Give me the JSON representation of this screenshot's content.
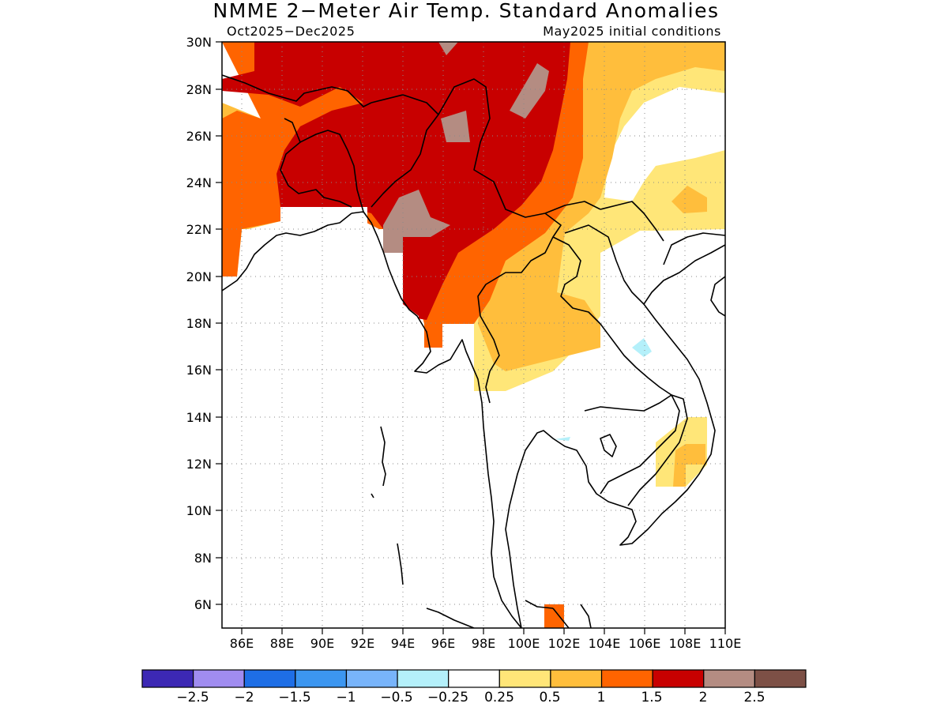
{
  "header": {
    "title": "NMME 2−Meter Air Temp. Standard Anomalies",
    "period": "Oct2025−Dec2025",
    "initial_conditions": "May2025 initial conditions"
  },
  "map": {
    "lon_range": [
      85,
      110
    ],
    "lat_range": [
      5,
      30
    ],
    "lat_ticks": [
      "30N",
      "28N",
      "26N",
      "24N",
      "22N",
      "20N",
      "18N",
      "16N",
      "14N",
      "12N",
      "10N",
      "8N",
      "6N"
    ],
    "lon_ticks": [
      "86E",
      "88E",
      "90E",
      "92E",
      "94E",
      "96E",
      "98E",
      "100E",
      "102E",
      "104E",
      "106E",
      "108E",
      "110E"
    ],
    "coastline_color": "#000000",
    "grid": "dotted"
  },
  "colorbar": {
    "colors": [
      "#3c28b4",
      "#a08cf0",
      "#1e6ee6",
      "#3c96f0",
      "#78b4fa",
      "#b4f0fa",
      "#ffffff",
      "#ffe678",
      "#ffbe3c",
      "#ff6400",
      "#c80000",
      "#b48c82",
      "#7d5046"
    ],
    "labels": [
      "−2.5",
      "−2",
      "−1.5",
      "−1",
      "−0.5",
      "−0.25",
      "0.25",
      "0.5",
      "1",
      "1.5",
      "2",
      "2.5"
    ]
  }
}
